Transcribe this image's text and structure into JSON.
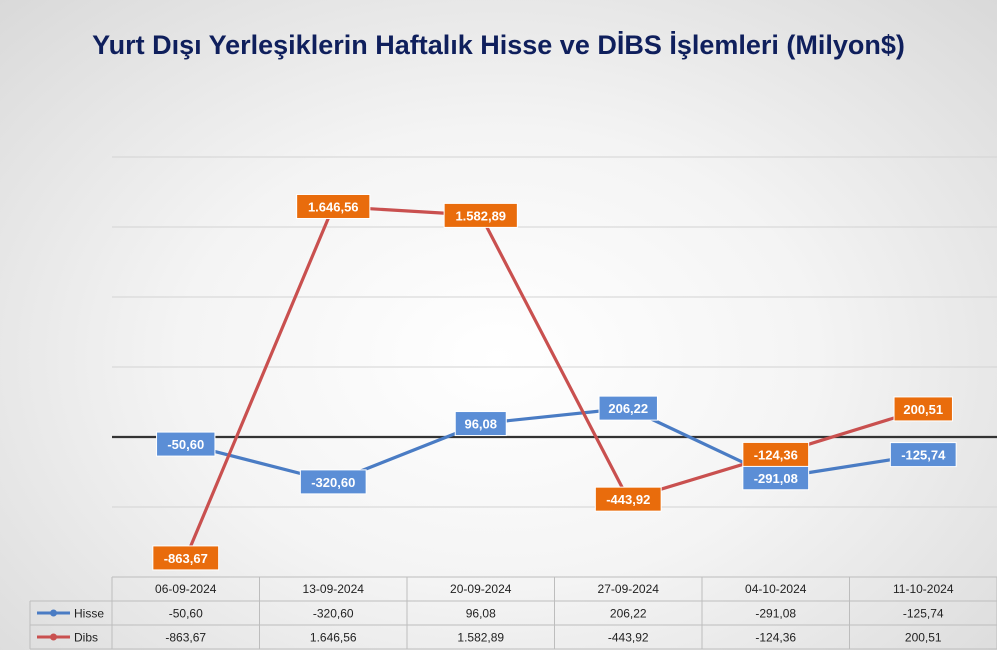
{
  "chart_data": {
    "type": "line",
    "title": "Yurt Dışı Yerleşiklerin Haftalık Hisse ve DİBS İşlemleri (Milyon$)",
    "categories": [
      "06-09-2024",
      "13-09-2024",
      "20-09-2024",
      "27-09-2024",
      "04-10-2024",
      "11-10-2024"
    ],
    "series": [
      {
        "name": "Hisse",
        "color": "#4a7cc4",
        "label_bg": "#5b8ed6",
        "values": [
          -50.6,
          -320.6,
          96.08,
          206.22,
          -291.08,
          -125.74
        ],
        "labels": [
          "-50,60",
          "-320,60",
          "96,08",
          "206,22",
          "-291,08",
          "-125,74"
        ]
      },
      {
        "name": "Dibs",
        "color": "#c9504f",
        "label_bg": "#e96c0c",
        "values": [
          -863.67,
          1646.56,
          1582.89,
          -443.92,
          -124.36,
          200.51
        ],
        "labels": [
          "-863,67",
          "1.646,56",
          "1.582,89",
          "-443,92",
          "-124,36",
          "200,51"
        ]
      }
    ],
    "ylim": [
      -1000,
      2000
    ],
    "grid": true,
    "legend": "data-table-below"
  }
}
